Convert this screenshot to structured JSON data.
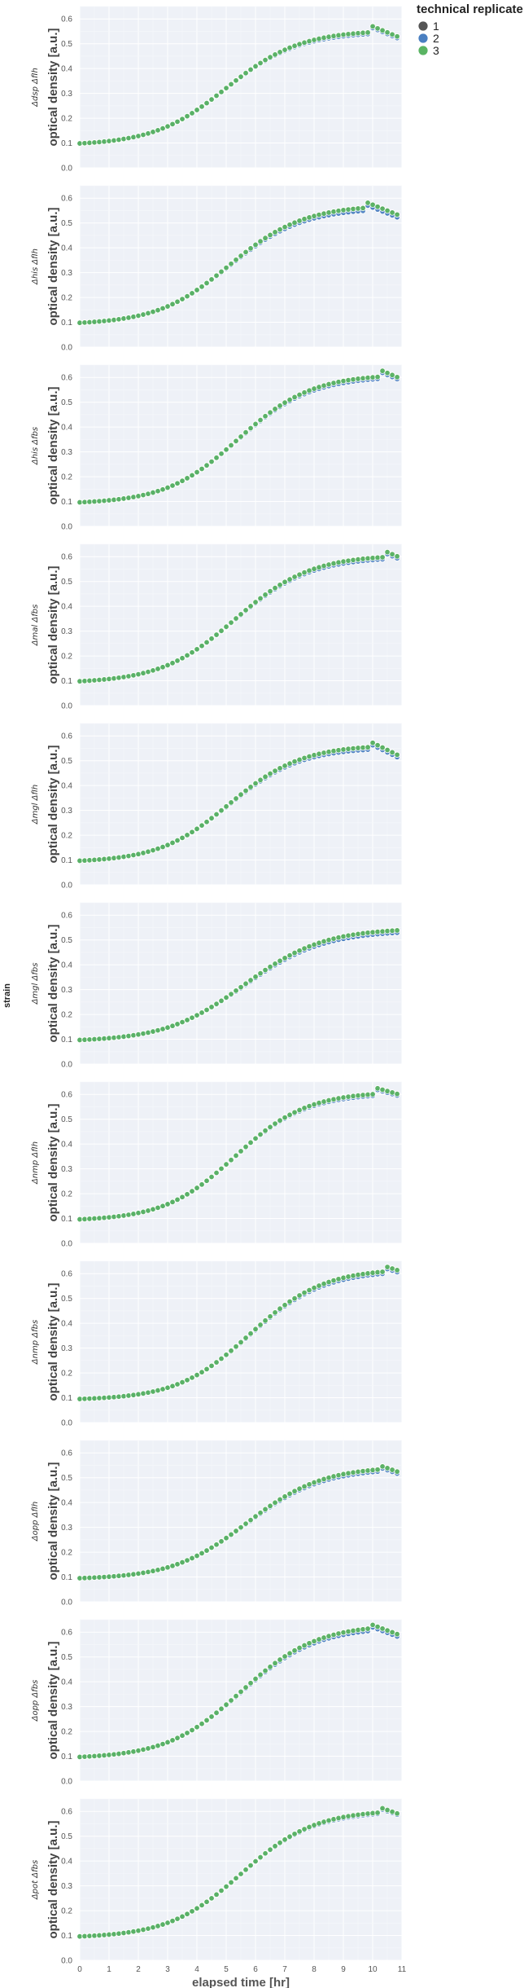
{
  "chart_data": {
    "type": "scatter",
    "facet_label": "strain",
    "xlabel": "elapsed time [hr]",
    "ylabel": "optical density [a.u.]",
    "xlim": [
      0,
      11
    ],
    "ylim": [
      0,
      0.65
    ],
    "xticks": [
      0,
      1,
      2,
      3,
      4,
      5,
      6,
      7,
      8,
      9,
      10,
      11
    ],
    "yticks": [
      0.0,
      0.1,
      0.2,
      0.3,
      0.4,
      0.5,
      0.6
    ],
    "grid": true,
    "legend": {
      "title": "technical replicate",
      "position": "top-right",
      "entries": [
        {
          "label": "1",
          "color": "#555555"
        },
        {
          "label": "2",
          "color": "#4a7fc1"
        },
        {
          "label": "3",
          "color": "#5ab463"
        }
      ]
    },
    "background_color": "#eef1f7",
    "panels": [
      {
        "strain": "Δdsp ΔfIh",
        "lag": 5.0,
        "rate": 0.8,
        "peak_t": 10.0,
        "peak": 0.54,
        "end": 0.515,
        "spread": 0.008
      },
      {
        "strain": "Δhis ΔfIh",
        "lag": 5.1,
        "rate": 0.8,
        "peak_t": 9.8,
        "peak": 0.55,
        "end": 0.515,
        "spread": 0.014
      },
      {
        "strain": "Δhis Δfbs",
        "lag": 5.4,
        "rate": 0.8,
        "peak_t": 10.3,
        "peak": 0.595,
        "end": 0.585,
        "spread": 0.01
      },
      {
        "strain": "Δmal Δfbs",
        "lag": 5.3,
        "rate": 0.78,
        "peak_t": 10.4,
        "peak": 0.59,
        "end": 0.585,
        "spread": 0.01
      },
      {
        "strain": "Δmgl ΔfIh",
        "lag": 5.1,
        "rate": 0.82,
        "peak_t": 9.9,
        "peak": 0.545,
        "end": 0.505,
        "spread": 0.012
      },
      {
        "strain": "Δmgl Δfbs",
        "lag": 5.6,
        "rate": 0.74,
        "peak_t": 11.0,
        "peak": 0.53,
        "end": 0.53,
        "spread": 0.012
      },
      {
        "strain": "Δnmp ΔfIh",
        "lag": 5.3,
        "rate": 0.82,
        "peak_t": 10.1,
        "peak": 0.595,
        "end": 0.59,
        "spread": 0.008
      },
      {
        "strain": "Δnmp Δfbs",
        "lag": 5.8,
        "rate": 0.8,
        "peak_t": 10.4,
        "peak": 0.6,
        "end": 0.6,
        "spread": 0.01
      },
      {
        "strain": "Δopp ΔfIh",
        "lag": 5.7,
        "rate": 0.78,
        "peak_t": 10.2,
        "peak": 0.525,
        "end": 0.51,
        "spread": 0.01
      },
      {
        "strain": "Δopp Δfbs",
        "lag": 5.5,
        "rate": 0.78,
        "peak_t": 9.9,
        "peak": 0.605,
        "end": 0.575,
        "spread": 0.012
      },
      {
        "strain": "Δpot Δfbs",
        "lag": 5.5,
        "rate": 0.8,
        "peak_t": 10.2,
        "peak": 0.59,
        "end": 0.58,
        "spread": 0.006
      }
    ]
  }
}
